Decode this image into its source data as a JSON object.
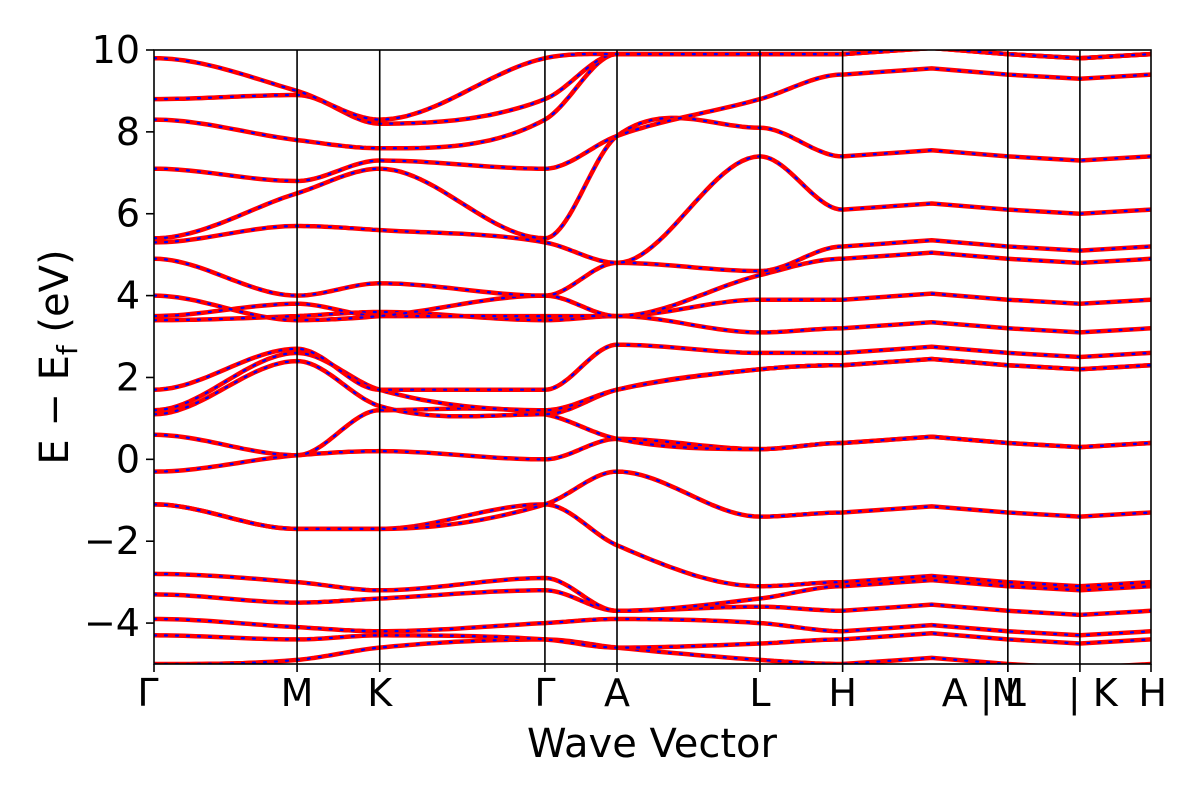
{
  "chart_data": {
    "type": "line",
    "xlabel": "Wave Vector",
    "ylabel": "E − E_f (eV)",
    "ylabel_parts": {
      "main": "E − E",
      "sub": "f",
      "unit": " (eV)"
    },
    "ylim": [
      -5,
      10
    ],
    "xlim": [
      0,
      1
    ],
    "grid": false,
    "legend": "none",
    "colors": {
      "dft": "#ff0000",
      "wannier": "#0000ff"
    },
    "series": [
      {
        "name": "",
        "style": "solid-red"
      },
      {
        "name": "",
        "style": "dotted-blue"
      }
    ],
    "y_ticks": [
      {
        "value": -4,
        "label": "−4"
      },
      {
        "value": -2,
        "label": "−2"
      },
      {
        "value": 0,
        "label": "0"
      },
      {
        "value": 2,
        "label": "2"
      },
      {
        "value": 4,
        "label": "4"
      },
      {
        "value": 6,
        "label": "6"
      },
      {
        "value": 8,
        "label": "8"
      },
      {
        "value": 10,
        "label": "10"
      }
    ],
    "kpoints": [
      {
        "pos": 0.0,
        "label": "Γ"
      },
      {
        "pos": 0.1435,
        "label": "M"
      },
      {
        "pos": 0.2264,
        "label": "K"
      },
      {
        "pos": 0.3921,
        "label": "Γ"
      },
      {
        "pos": 0.4644,
        "label": "A"
      },
      {
        "pos": 0.6078,
        "label": "L"
      },
      {
        "pos": 0.6907,
        "label": "H"
      },
      {
        "pos": 0.8564,
        "label": "A | L"
      },
      {
        "pos": 0.8564,
        "label": "M"
      },
      {
        "pos": 0.9287,
        "label": "| K"
      },
      {
        "pos": 1.0,
        "label": "H"
      }
    ],
    "bands": [
      [
        -5.0,
        -4.9,
        -4.6,
        -4.4,
        -4.6,
        -4.9,
        -5.0
      ],
      [
        -4.3,
        -4.4,
        -4.3,
        -4.4,
        -4.6,
        -4.5,
        -4.4
      ],
      [
        -3.9,
        -4.1,
        -4.2,
        -4.0,
        -3.9,
        -4.0,
        -4.2
      ],
      [
        -3.3,
        -3.5,
        -3.4,
        -3.2,
        -3.7,
        -3.6,
        -3.7
      ],
      [
        -2.8,
        -3.0,
        -3.2,
        -2.9,
        -3.7,
        -3.4,
        -3.1
      ],
      [
        -1.1,
        -1.7,
        -1.7,
        -1.1,
        -2.1,
        -3.1,
        -3.0
      ],
      [
        -1.1,
        -1.7,
        -1.7,
        -1.1,
        -0.3,
        -1.4,
        -1.3
      ],
      [
        -0.3,
        0.1,
        0.2,
        0.0,
        0.5,
        0.25,
        0.4
      ],
      [
        0.6,
        0.1,
        1.2,
        1.1,
        0.5,
        0.25,
        0.4
      ],
      [
        1.1,
        2.4,
        1.3,
        1.1,
        1.7,
        2.2,
        2.3
      ],
      [
        1.2,
        2.6,
        1.7,
        1.2,
        1.7,
        2.2,
        2.3
      ],
      [
        1.7,
        2.7,
        1.7,
        1.7,
        2.8,
        2.6,
        2.6
      ],
      [
        3.4,
        3.5,
        3.6,
        3.4,
        3.5,
        3.1,
        3.2
      ],
      [
        3.5,
        3.8,
        3.5,
        3.5,
        3.5,
        3.9,
        3.9
      ],
      [
        4.0,
        3.4,
        3.5,
        4.0,
        3.5,
        4.5,
        4.9
      ],
      [
        4.9,
        4.0,
        4.3,
        4.0,
        4.8,
        4.6,
        5.2
      ],
      [
        5.3,
        5.7,
        5.6,
        5.3,
        4.8,
        7.4,
        6.1
      ],
      [
        5.4,
        6.5,
        7.1,
        5.4,
        7.9,
        8.1,
        7.4
      ],
      [
        7.1,
        6.8,
        7.3,
        7.1,
        7.9,
        8.8,
        9.4
      ],
      [
        8.3,
        7.8,
        7.6,
        8.3,
        9.9,
        9.9,
        9.9
      ],
      [
        8.8,
        8.9,
        8.2,
        8.8,
        9.9,
        9.9,
        9.9
      ],
      [
        9.8,
        9.0,
        8.3,
        9.8,
        9.9,
        9.9,
        9.9
      ]
    ]
  }
}
